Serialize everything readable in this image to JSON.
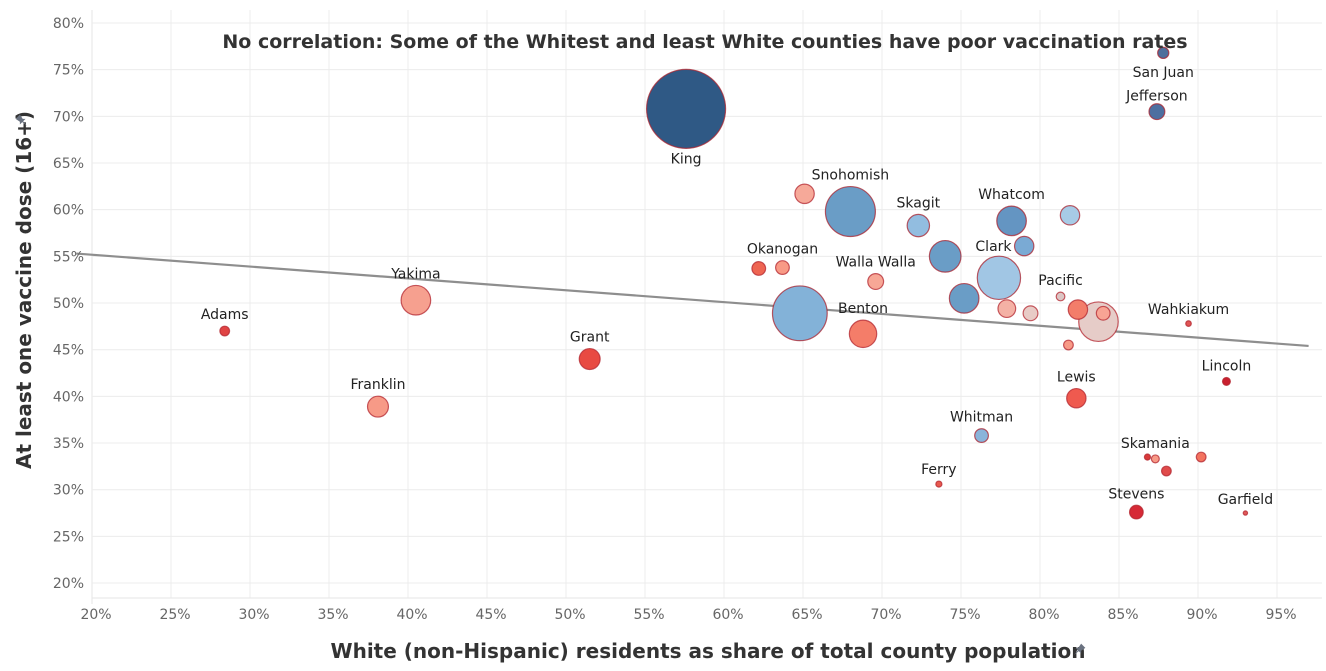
{
  "chart_data": {
    "type": "scatter",
    "title": "No correlation: Some of the Whitest and least White counties have poor vaccination rates",
    "xlabel": "White (non-Hispanic) residents as share of total county population",
    "ylabel": "At least one vaccine dose (16+)",
    "xlim": [
      0.19,
      0.97
    ],
    "ylim": [
      0.18,
      0.81
    ],
    "xticks": [
      0.2,
      0.25,
      0.3,
      0.35,
      0.4,
      0.45,
      0.5,
      0.55,
      0.6,
      0.65,
      0.7,
      0.75,
      0.8,
      0.85,
      0.9,
      0.95
    ],
    "xtick_labels": [
      "20%",
      "25%",
      "30%",
      "35%",
      "40%",
      "45%",
      "50%",
      "55%",
      "60%",
      "65%",
      "70%",
      "75%",
      "80%",
      "85%",
      "90%",
      "95%"
    ],
    "yticks": [
      0.2,
      0.25,
      0.3,
      0.35,
      0.4,
      0.45,
      0.5,
      0.55,
      0.6,
      0.65,
      0.7,
      0.75,
      0.8
    ],
    "ytick_labels": [
      "20%",
      "25%",
      "30%",
      "35%",
      "40%",
      "45%",
      "50%",
      "55%",
      "60%",
      "65%",
      "70%",
      "75%",
      "80%"
    ],
    "grid": true,
    "size_encoding": "county population (relative bubble size)",
    "trend_line": {
      "x": [
        0.19,
        0.97
      ],
      "y": [
        0.553,
        0.454
      ]
    },
    "points": [
      {
        "name": "King",
        "x": 0.576,
        "y": 0.708,
        "size": 100,
        "color": "#2f5985",
        "label": "King",
        "label_pos": "below"
      },
      {
        "name": "San Juan",
        "x": 0.878,
        "y": 0.768,
        "size": 2,
        "color": "#4e6f9c",
        "label": "San Juan",
        "label_pos": "below"
      },
      {
        "name": "Jefferson",
        "x": 0.874,
        "y": 0.705,
        "size": 4,
        "color": "#4d6fa0",
        "label": "Jefferson",
        "label_pos": "above"
      },
      {
        "name": "Snohomish",
        "x": 0.68,
        "y": 0.598,
        "size": 40,
        "color": "#6a9dc6",
        "label": "Snohomish",
        "label_pos": "above"
      },
      {
        "name": "",
        "x": 0.651,
        "y": 0.617,
        "size": 6,
        "color": "#f6a999",
        "label": "",
        "label_pos": ""
      },
      {
        "name": "Skagit",
        "x": 0.723,
        "y": 0.583,
        "size": 8,
        "color": "#92bde0",
        "label": "Skagit",
        "label_pos": "above"
      },
      {
        "name": "",
        "x": 0.74,
        "y": 0.55,
        "size": 16,
        "color": "#6a9dc6",
        "label": "",
        "label_pos": ""
      },
      {
        "name": "Whatcom",
        "x": 0.782,
        "y": 0.588,
        "size": 14,
        "color": "#6495c2",
        "label": "Whatcom",
        "label_pos": "above"
      },
      {
        "name": "",
        "x": 0.819,
        "y": 0.594,
        "size": 6,
        "color": "#a7cbe6",
        "label": "",
        "label_pos": ""
      },
      {
        "name": "Clark",
        "x": 0.79,
        "y": 0.561,
        "size": 6,
        "color": "#7aaad4",
        "label": "Clark",
        "label_pos": "left"
      },
      {
        "name": "",
        "x": 0.774,
        "y": 0.527,
        "size": 30,
        "color": "#a1c6e4",
        "label": "",
        "label_pos": ""
      },
      {
        "name": "",
        "x": 0.752,
        "y": 0.505,
        "size": 14,
        "color": "#6a9dc6",
        "label": "",
        "label_pos": ""
      },
      {
        "name": "Okanogan",
        "x": 0.637,
        "y": 0.538,
        "size": 3,
        "color": "#f89a86",
        "label": "Okanogan",
        "label_pos": "above"
      },
      {
        "name": "",
        "x": 0.622,
        "y": 0.537,
        "size": 3,
        "color": "#ee6552",
        "label": "",
        "label_pos": ""
      },
      {
        "name": "Walla Walla",
        "x": 0.696,
        "y": 0.523,
        "size": 4,
        "color": "#f7a796",
        "label": "Walla Walla",
        "label_pos": "above"
      },
      {
        "name": "Yakima",
        "x": 0.405,
        "y": 0.503,
        "size": 14,
        "color": "#f6a08f",
        "label": "Yakima",
        "label_pos": "above"
      },
      {
        "name": "",
        "x": 0.648,
        "y": 0.489,
        "size": 48,
        "color": "#83b2d8",
        "label": "",
        "label_pos": ""
      },
      {
        "name": "Benton",
        "x": 0.688,
        "y": 0.467,
        "size": 12,
        "color": "#f47d69",
        "label": "Benton",
        "label_pos": "above"
      },
      {
        "name": "Adams",
        "x": 0.284,
        "y": 0.47,
        "size": 1.5,
        "color": "#e04444",
        "label": "Adams",
        "label_pos": "above"
      },
      {
        "name": "Grant",
        "x": 0.515,
        "y": 0.44,
        "size": 7,
        "color": "#e84a42",
        "label": "Grant",
        "label_pos": "above"
      },
      {
        "name": "Franklin",
        "x": 0.381,
        "y": 0.389,
        "size": 7,
        "color": "#f79a87",
        "label": "Franklin",
        "label_pos": "above"
      },
      {
        "name": "",
        "x": 0.779,
        "y": 0.494,
        "size": 5,
        "color": "#f4b1a5",
        "label": "",
        "label_pos": ""
      },
      {
        "name": "",
        "x": 0.794,
        "y": 0.489,
        "size": 3.5,
        "color": "#e8cbc6",
        "label": "",
        "label_pos": ""
      },
      {
        "name": "Pacific",
        "x": 0.813,
        "y": 0.507,
        "size": 1.2,
        "color": "#dcc5c4",
        "label": "Pacific",
        "label_pos": "above"
      },
      {
        "name": "",
        "x": 0.824,
        "y": 0.493,
        "size": 6,
        "color": "#f37d6a",
        "label": "",
        "label_pos": ""
      },
      {
        "name": "",
        "x": 0.837,
        "y": 0.48,
        "size": 25,
        "color": "#e6ccc8",
        "label": "",
        "label_pos": ""
      },
      {
        "name": "",
        "x": 0.84,
        "y": 0.489,
        "size": 3,
        "color": "#f8a494",
        "label": "",
        "label_pos": ""
      },
      {
        "name": "",
        "x": 0.818,
        "y": 0.455,
        "size": 1.5,
        "color": "#f79a87",
        "label": "",
        "label_pos": ""
      },
      {
        "name": "Wahkiakum",
        "x": 0.894,
        "y": 0.478,
        "size": 0.5,
        "color": "#e05555",
        "label": "Wahkiakum",
        "label_pos": "above"
      },
      {
        "name": "Lincoln",
        "x": 0.918,
        "y": 0.416,
        "size": 1,
        "color": "#c9202f",
        "label": "Lincoln",
        "label_pos": "above"
      },
      {
        "name": "Lewis",
        "x": 0.823,
        "y": 0.398,
        "size": 6,
        "color": "#ef5a4f",
        "label": "Lewis",
        "label_pos": "above"
      },
      {
        "name": "Whitman",
        "x": 0.763,
        "y": 0.358,
        "size": 3,
        "color": "#8ab4da",
        "label": "Whitman",
        "label_pos": "above"
      },
      {
        "name": "Skamania",
        "x": 0.873,
        "y": 0.333,
        "size": 1,
        "color": "#f79a87",
        "label": "Skamania",
        "label_pos": "above"
      },
      {
        "name": "",
        "x": 0.868,
        "y": 0.335,
        "size": 0.6,
        "color": "#d83a3a",
        "label": "",
        "label_pos": ""
      },
      {
        "name": "",
        "x": 0.88,
        "y": 0.32,
        "size": 1.5,
        "color": "#e04b4b",
        "label": "",
        "label_pos": ""
      },
      {
        "name": "",
        "x": 0.902,
        "y": 0.335,
        "size": 1.5,
        "color": "#f3735f",
        "label": "",
        "label_pos": ""
      },
      {
        "name": "Ferry",
        "x": 0.736,
        "y": 0.306,
        "size": 0.6,
        "color": "#e85a4f",
        "label": "Ferry",
        "label_pos": "above"
      },
      {
        "name": "Stevens",
        "x": 0.861,
        "y": 0.276,
        "size": 3,
        "color": "#d62a36",
        "label": "Stevens",
        "label_pos": "above"
      },
      {
        "name": "Garfield",
        "x": 0.93,
        "y": 0.275,
        "size": 0.3,
        "color": "#e05a5a",
        "label": "Garfield",
        "label_pos": "above"
      }
    ]
  },
  "icons": {
    "x_axis_pin": "pin-icon",
    "y_axis_pin": "pin-icon"
  }
}
